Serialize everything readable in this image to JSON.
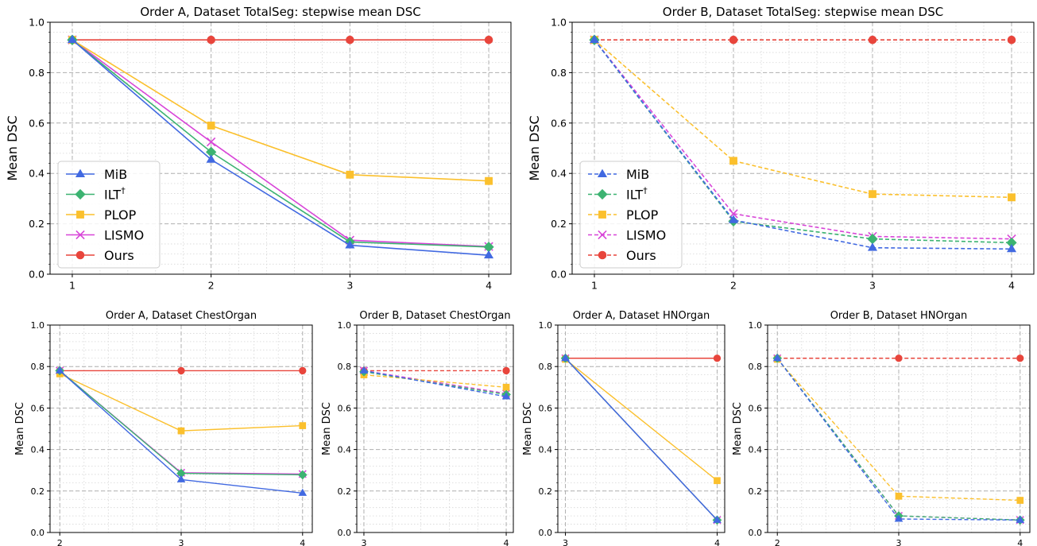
{
  "colors": {
    "MiB": "#4169e1",
    "ILT": "#3cb371",
    "PLOP": "#fbc02d",
    "LISMO": "#d845d8",
    "Ours": "#e8453c"
  },
  "chart_data": [
    {
      "id": "top-left",
      "type": "line",
      "title": "Order A, Dataset TotalSeg: stepwise mean DSC",
      "xlabel": "",
      "ylabel": "Mean DSC",
      "x": [
        1,
        2,
        3,
        4
      ],
      "ylim": [
        0,
        1
      ],
      "yticks": [
        "0.0",
        "0.2",
        "0.4",
        "0.6",
        "0.8",
        "1.0"
      ],
      "line_style": "solid",
      "legend": "lower-left",
      "grid": true,
      "series": [
        {
          "name": "MiB",
          "marker": "triangle",
          "values": [
            0.93,
            0.455,
            0.115,
            0.075
          ]
        },
        {
          "name": "ILT",
          "sup": "†",
          "marker": "diamond",
          "values": [
            0.93,
            0.485,
            0.128,
            0.108
          ]
        },
        {
          "name": "PLOP",
          "marker": "square",
          "values": [
            0.93,
            0.59,
            0.395,
            0.37
          ]
        },
        {
          "name": "LISMO",
          "marker": "x",
          "values": [
            0.93,
            0.525,
            0.135,
            0.11
          ]
        },
        {
          "name": "Ours",
          "marker": "circle",
          "values": [
            0.93,
            0.93,
            0.93,
            0.93
          ]
        }
      ]
    },
    {
      "id": "top-right",
      "type": "line",
      "title": "Order B, Dataset TotalSeg: stepwise mean DSC",
      "xlabel": "",
      "ylabel": "Mean DSC",
      "x": [
        1,
        2,
        3,
        4
      ],
      "ylim": [
        0,
        1
      ],
      "yticks": [
        "0.0",
        "0.2",
        "0.4",
        "0.6",
        "0.8",
        "1.0"
      ],
      "line_style": "dashed",
      "legend": "lower-left",
      "grid": true,
      "series": [
        {
          "name": "MiB",
          "marker": "triangle",
          "values": [
            0.93,
            0.215,
            0.105,
            0.1
          ]
        },
        {
          "name": "ILT",
          "sup": "†",
          "marker": "diamond",
          "values": [
            0.93,
            0.21,
            0.14,
            0.125
          ]
        },
        {
          "name": "PLOP",
          "marker": "square",
          "values": [
            0.93,
            0.45,
            0.318,
            0.305
          ]
        },
        {
          "name": "LISMO",
          "marker": "x",
          "values": [
            0.93,
            0.24,
            0.15,
            0.14
          ]
        },
        {
          "name": "Ours",
          "marker": "circle",
          "values": [
            0.93,
            0.93,
            0.93,
            0.93
          ]
        }
      ]
    },
    {
      "id": "bottom-1",
      "type": "line",
      "title": "Order A, Dataset ChestOrgan",
      "xlabel": "",
      "ylabel": "Mean DSC",
      "x": [
        2,
        3,
        4
      ],
      "ylim": [
        0,
        1
      ],
      "yticks": [
        "0.0",
        "0.2",
        "0.4",
        "0.6",
        "0.8",
        "1.0"
      ],
      "line_style": "solid",
      "grid": true,
      "series": [
        {
          "name": "MiB",
          "marker": "triangle",
          "values": [
            0.78,
            0.255,
            0.19
          ]
        },
        {
          "name": "ILT",
          "marker": "diamond",
          "values": [
            0.78,
            0.285,
            0.278
          ]
        },
        {
          "name": "PLOP",
          "marker": "square",
          "values": [
            0.765,
            0.49,
            0.515
          ]
        },
        {
          "name": "LISMO",
          "marker": "x",
          "values": [
            0.78,
            0.288,
            0.282
          ]
        },
        {
          "name": "Ours",
          "marker": "circle",
          "values": [
            0.78,
            0.78,
            0.78
          ]
        }
      ]
    },
    {
      "id": "bottom-2",
      "type": "line",
      "title": "Order B, Dataset ChestOrgan",
      "xlabel": "",
      "ylabel": "Mean DSC",
      "x": [
        3,
        4
      ],
      "ylim": [
        0,
        1
      ],
      "yticks": [
        "0.0",
        "0.2",
        "0.4",
        "0.6",
        "0.8",
        "1.0"
      ],
      "line_style": "dashed",
      "grid": true,
      "series": [
        {
          "name": "MiB",
          "marker": "triangle",
          "values": [
            0.78,
            0.655
          ]
        },
        {
          "name": "ILT",
          "marker": "diamond",
          "values": [
            0.775,
            0.665
          ]
        },
        {
          "name": "PLOP",
          "marker": "square",
          "values": [
            0.76,
            0.7
          ]
        },
        {
          "name": "LISMO",
          "marker": "x",
          "values": [
            0.78,
            0.67
          ]
        },
        {
          "name": "Ours",
          "marker": "circle",
          "values": [
            0.78,
            0.78
          ]
        }
      ]
    },
    {
      "id": "bottom-3",
      "type": "line",
      "title": "Order A, Dataset HNOrgan",
      "xlabel": "",
      "ylabel": "Mean DSC",
      "x": [
        3,
        4
      ],
      "ylim": [
        0,
        1
      ],
      "yticks": [
        "0.0",
        "0.2",
        "0.4",
        "0.6",
        "0.8",
        "1.0"
      ],
      "line_style": "solid",
      "grid": true,
      "series": [
        {
          "name": "MiB",
          "marker": "triangle",
          "values": [
            0.84,
            0.06
          ]
        },
        {
          "name": "ILT",
          "marker": "diamond",
          "values": [
            0.84,
            0.06
          ]
        },
        {
          "name": "PLOP",
          "marker": "square",
          "values": [
            0.835,
            0.25
          ]
        },
        {
          "name": "LISMO",
          "marker": "x",
          "values": [
            0.84,
            0.06
          ]
        },
        {
          "name": "Ours",
          "marker": "circle",
          "values": [
            0.84,
            0.84
          ]
        }
      ]
    },
    {
      "id": "bottom-4",
      "type": "line",
      "title": "Order B, Dataset HNOrgan",
      "xlabel": "",
      "ylabel": "Mean DSC",
      "x": [
        2,
        3,
        4
      ],
      "ylim": [
        0,
        1
      ],
      "yticks": [
        "0.0",
        "0.2",
        "0.4",
        "0.6",
        "0.8",
        "1.0"
      ],
      "line_style": "dashed",
      "grid": true,
      "series": [
        {
          "name": "MiB",
          "marker": "triangle",
          "values": [
            0.84,
            0.065,
            0.06
          ]
        },
        {
          "name": "ILT",
          "marker": "diamond",
          "values": [
            0.84,
            0.08,
            0.06
          ]
        },
        {
          "name": "PLOP",
          "marker": "square",
          "values": [
            0.835,
            0.175,
            0.155
          ]
        },
        {
          "name": "LISMO",
          "marker": "x",
          "values": [
            0.84,
            0.08,
            0.06
          ]
        },
        {
          "name": "Ours",
          "marker": "circle",
          "values": [
            0.84,
            0.84,
            0.84
          ]
        }
      ]
    }
  ]
}
